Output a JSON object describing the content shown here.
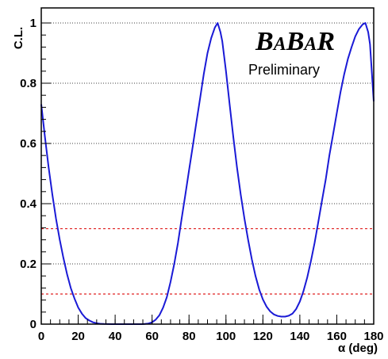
{
  "chart_data": {
    "type": "line",
    "title": "",
    "xlabel": "α (deg)",
    "ylabel": "C.L.",
    "xlim": [
      0,
      180
    ],
    "ylim": [
      0,
      1.05
    ],
    "x_ticks": [
      "0",
      "20",
      "40",
      "60",
      "80",
      "100",
      "120",
      "140",
      "160",
      "180"
    ],
    "y_ticks": [
      "0",
      "0.2",
      "0.4",
      "0.6",
      "0.8",
      "1"
    ],
    "grid": "horizontal dotted",
    "series": [
      {
        "color": "#1a1ad6",
        "x": [
          0,
          2,
          4,
          6,
          8,
          10,
          12,
          14,
          16,
          18,
          20,
          22,
          24,
          26,
          28,
          30,
          32,
          34,
          36,
          38,
          40,
          44,
          48,
          52,
          55,
          58,
          60,
          62,
          64,
          66,
          68,
          70,
          72,
          74,
          76,
          78,
          80,
          82,
          84,
          86,
          88,
          90,
          92,
          94,
          95.5,
          97,
          98,
          100,
          102,
          104,
          106,
          108,
          110,
          112,
          114,
          116,
          118,
          120,
          122,
          124,
          126,
          128,
          130,
          132,
          134,
          136,
          138,
          140,
          142,
          144,
          146,
          148,
          150,
          152,
          154,
          156,
          158,
          160,
          162,
          164,
          166,
          168,
          170,
          172,
          174,
          175.5,
          177,
          178,
          180
        ],
        "values": [
          0.73,
          0.62,
          0.52,
          0.43,
          0.35,
          0.28,
          0.22,
          0.165,
          0.12,
          0.085,
          0.055,
          0.035,
          0.02,
          0.012,
          0.006,
          0.003,
          0.001,
          0.0005,
          0.0002,
          0.0001,
          0.0,
          0.0,
          0.0,
          0.0,
          0.0,
          0.002,
          0.006,
          0.015,
          0.03,
          0.055,
          0.09,
          0.14,
          0.2,
          0.27,
          0.35,
          0.43,
          0.51,
          0.59,
          0.67,
          0.75,
          0.83,
          0.9,
          0.95,
          0.985,
          1.0,
          0.97,
          0.94,
          0.84,
          0.73,
          0.62,
          0.52,
          0.43,
          0.35,
          0.28,
          0.215,
          0.16,
          0.115,
          0.082,
          0.058,
          0.042,
          0.032,
          0.027,
          0.025,
          0.025,
          0.028,
          0.035,
          0.05,
          0.075,
          0.11,
          0.155,
          0.21,
          0.27,
          0.34,
          0.41,
          0.48,
          0.56,
          0.63,
          0.7,
          0.77,
          0.83,
          0.88,
          0.92,
          0.955,
          0.98,
          0.995,
          1.0,
          0.97,
          0.93,
          0.74
        ]
      }
    ],
    "reference_lines": [
      {
        "y": 0.317,
        "color": "#e02020",
        "style": "dashed"
      },
      {
        "y": 0.1,
        "color": "#e02020",
        "style": "dashed"
      }
    ],
    "annotations": {
      "logo": "BABAR",
      "subtitle": "Preliminary"
    }
  }
}
